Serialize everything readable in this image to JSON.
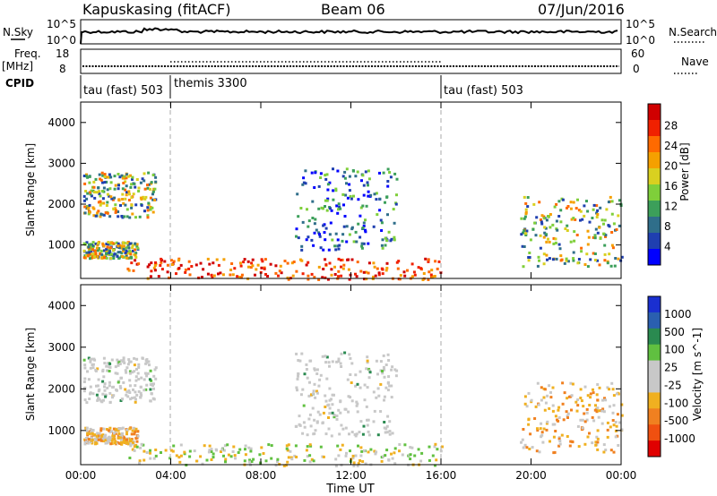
{
  "header": {
    "station": "Kapuskasing (fitACF)",
    "beam": "Beam 06",
    "date": "07/Jun/2016"
  },
  "summary_panels": {
    "nsky_label": "N.Sky",
    "nsearch_label": "N.Search",
    "nsky_ticks": [
      "10^5",
      "10^0"
    ],
    "nsearch_ticks": [
      "10^5",
      "10^0"
    ],
    "freq_label_1": "Freq.",
    "freq_label_2": "[MHz]",
    "freq_ticks": [
      "18",
      "8"
    ],
    "nave_label": "Nave",
    "nave_ticks": [
      "60",
      "0"
    ],
    "cpid_label": "CPID",
    "cpid_segments": [
      {
        "label": "tau (fast) 503",
        "start": "00:00"
      },
      {
        "label": "themis 3300",
        "start": "04:00"
      },
      {
        "label": "tau (fast) 503",
        "start": "16:00"
      }
    ]
  },
  "chart_data": [
    {
      "type": "heatmap",
      "panel": "power",
      "ylabel": "Slant Range [km]",
      "ylim": [
        180,
        4500
      ],
      "yticks": [
        "1000",
        "2000",
        "3000",
        "4000"
      ],
      "xlim": [
        "00:00",
        "24:00"
      ],
      "xticks": [
        "00:00",
        "04:00",
        "08:00",
        "12:00",
        "16:00",
        "20:00",
        "00:00"
      ],
      "colorbar_label": "Power [dB]",
      "colorbar_ticks": [
        "4",
        "8",
        "12",
        "16",
        "20",
        "24",
        "28"
      ],
      "colors": [
        "#0000ff",
        "#1f3fb0",
        "#2f6e8a",
        "#3c9f5a",
        "#7fcf3a",
        "#d9d020",
        "#f5a000",
        "#ff6a00",
        "#f02000",
        "#d00000"
      ],
      "echo_regions": [
        {
          "t_start": 0.1,
          "t_end": 3.3,
          "r_start": 1700,
          "r_end": 2800,
          "level": "8-24 dB"
        },
        {
          "t_start": 0.1,
          "t_end": 2.5,
          "r_start": 700,
          "r_end": 1100,
          "level": "8-24 dB"
        },
        {
          "t_start": 2.0,
          "t_end": 16.0,
          "r_start": 180,
          "r_end": 700,
          "level": "20-28 dB"
        },
        {
          "t_start": 9.5,
          "t_end": 14.0,
          "r_start": 900,
          "r_end": 2900,
          "level": "4-16 dB"
        },
        {
          "t_start": 19.5,
          "t_end": 24.0,
          "r_start": 500,
          "r_end": 2200,
          "level": "8-24 dB"
        }
      ]
    },
    {
      "type": "heatmap",
      "panel": "velocity",
      "ylabel": "Slant Range [km]",
      "ylim": [
        180,
        4500
      ],
      "yticks": [
        "1000",
        "2000",
        "3000",
        "4000"
      ],
      "xlabel": "Time UT",
      "xlim": [
        "00:00",
        "24:00"
      ],
      "xticks": [
        "00:00",
        "04:00",
        "08:00",
        "12:00",
        "16:00",
        "20:00",
        "00:00"
      ],
      "colorbar_label": "Velocity [m s^-1]",
      "colorbar_ticks": [
        "1000",
        "500",
        "100",
        "25",
        "-25",
        "-100",
        "-500",
        "-1000"
      ],
      "colors": [
        "#1a2fd0",
        "#2a5fb0",
        "#2a8a50",
        "#60c040",
        "#c8c8c8",
        "#c8c8c8",
        "#f0b020",
        "#f08020",
        "#f05010",
        "#e00000"
      ],
      "echo_regions": [
        {
          "t_start": 0.1,
          "t_end": 3.3,
          "r_start": 1700,
          "r_end": 2800,
          "level": "-25..25 m/s"
        },
        {
          "t_start": 0.1,
          "t_end": 2.5,
          "r_start": 700,
          "r_end": 1100,
          "level": "-500..-100 m/s"
        },
        {
          "t_start": 2.0,
          "t_end": 16.0,
          "r_start": 180,
          "r_end": 700,
          "level": "-100..100 m/s"
        },
        {
          "t_start": 9.5,
          "t_end": 14.0,
          "r_start": 900,
          "r_end": 2900,
          "level": "-25..25 m/s"
        },
        {
          "t_start": 19.5,
          "t_end": 24.0,
          "r_start": 500,
          "r_end": 2200,
          "level": "-500..25 m/s"
        }
      ]
    }
  ]
}
